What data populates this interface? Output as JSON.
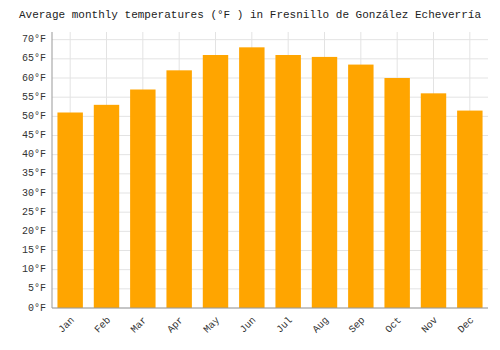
{
  "chart_data": {
    "type": "bar",
    "title": "Average monthly temperatures (°F ) in Fresnillo de González Echeverría",
    "categories": [
      "Jan",
      "Feb",
      "Mar",
      "Apr",
      "May",
      "Jun",
      "Jul",
      "Aug",
      "Sep",
      "Oct",
      "Nov",
      "Dec"
    ],
    "values": [
      51.0,
      53.0,
      57.0,
      62.0,
      66.0,
      68.0,
      66.0,
      65.5,
      63.5,
      60.0,
      56.0,
      51.5
    ],
    "color": "#FFA500",
    "ylim": [
      0,
      72
    ],
    "yticks": [
      {
        "value": 0,
        "label": "0°F"
      },
      {
        "value": 5,
        "label": "5°F"
      },
      {
        "value": 10,
        "label": "10°F"
      },
      {
        "value": 15,
        "label": "15°F"
      },
      {
        "value": 20,
        "label": "20°F"
      },
      {
        "value": 25,
        "label": "25°F"
      },
      {
        "value": 30,
        "label": "30°F"
      },
      {
        "value": 35,
        "label": "35°F"
      },
      {
        "value": 40,
        "label": "40°F"
      },
      {
        "value": 45,
        "label": "45°F"
      },
      {
        "value": 50,
        "label": "50°F"
      },
      {
        "value": 55,
        "label": "55°F"
      },
      {
        "value": 60,
        "label": "60°F"
      },
      {
        "value": 65,
        "label": "65°F"
      },
      {
        "value": 70,
        "label": "70°F"
      }
    ],
    "grid": true
  }
}
